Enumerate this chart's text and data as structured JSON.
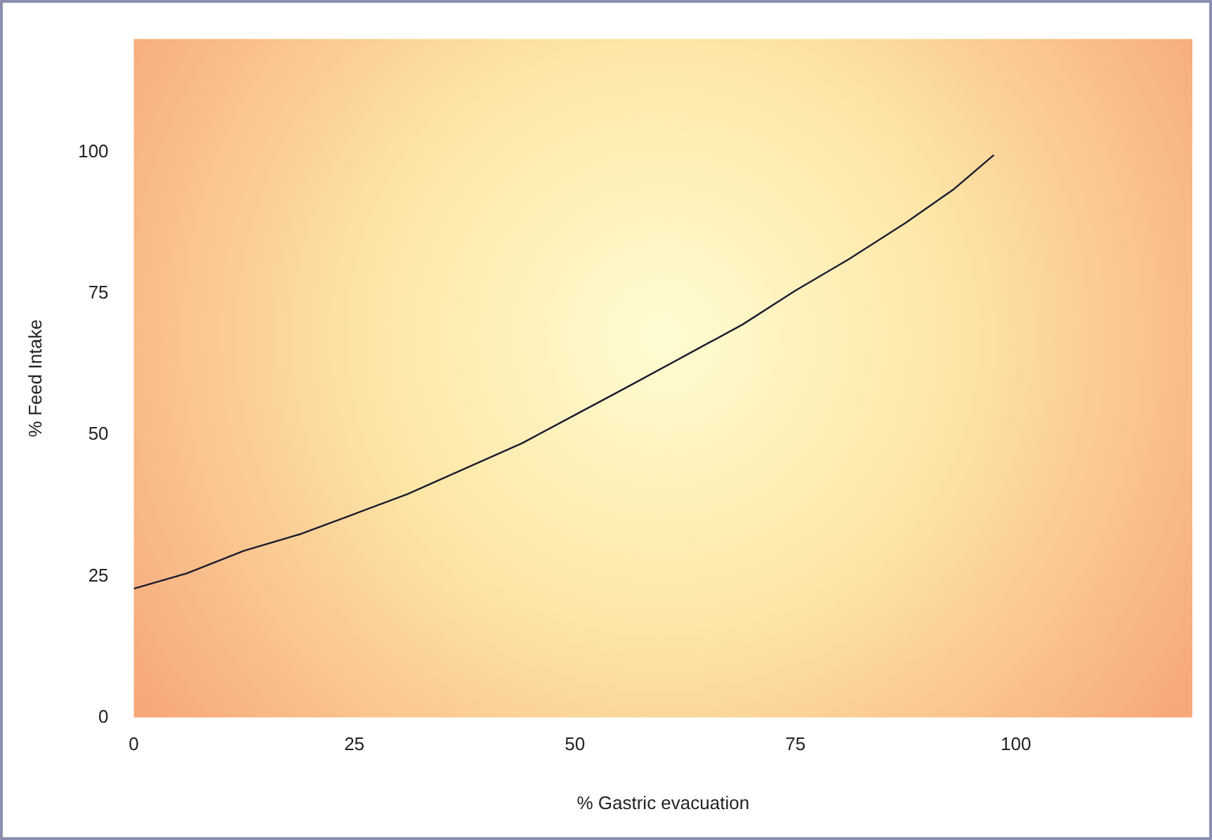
{
  "chart_data": {
    "type": "line",
    "xlabel": "% Gastric evacuation",
    "ylabel": "% Feed Intake",
    "xlim": [
      0,
      120
    ],
    "xticks": [
      0,
      25,
      50,
      75,
      100
    ],
    "ylim": [
      0,
      120
    ],
    "yticks": [
      0,
      25,
      50,
      75,
      100
    ],
    "grid": false,
    "legend": false,
    "marker": "none",
    "line_style": "solid",
    "series": [
      {
        "color": "#1a1a2e",
        "x": [
          0,
          6,
          12.5,
          19,
          25,
          31,
          37.5,
          44,
          50,
          56,
          62.5,
          69,
          75,
          81,
          87.5,
          93,
          97.5
        ],
        "values": [
          22.8,
          25.5,
          29.5,
          32.5,
          36,
          39.5,
          44,
          48.5,
          53.5,
          58.5,
          64,
          69.5,
          75.5,
          81,
          87.5,
          93.5,
          99.5
        ]
      }
    ]
  }
}
